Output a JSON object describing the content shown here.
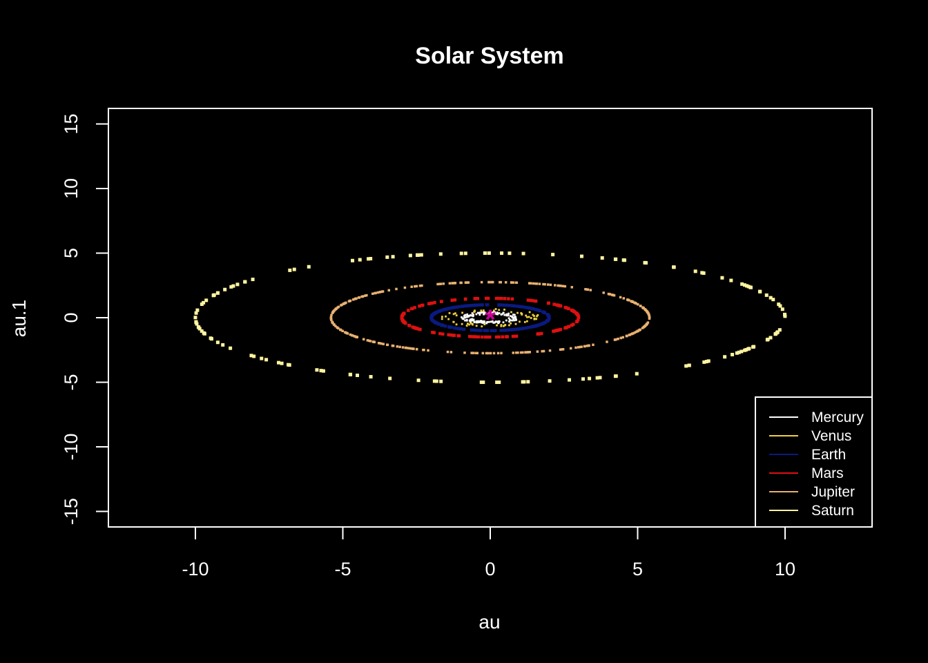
{
  "chart_data": {
    "type": "scatter",
    "title": "Solar System",
    "xlabel": "au",
    "ylabel": "au.1",
    "xlim": [
      -12.95,
      12.95
    ],
    "ylim": [
      -16.2,
      16.2
    ],
    "x_ticks": [
      -10,
      -5,
      0,
      5,
      10
    ],
    "y_ticks": [
      -15,
      -10,
      -5,
      0,
      5,
      10,
      15
    ],
    "grid": false,
    "legend_position": "bottom-right",
    "background_color": "#000000",
    "foreground_color": "#ffffff",
    "sun": {
      "x": 0,
      "y": 0,
      "symbol": "*",
      "color": "#cc0099"
    },
    "series": [
      {
        "name": "Mercury",
        "color": "#ffffff",
        "orbit_rx": 0.9,
        "orbit_ry": 0.4,
        "points": 140
      },
      {
        "name": "Venus",
        "color": "#f0d040",
        "orbit_rx": 1.4,
        "orbit_ry": 0.6,
        "points": 60
      },
      {
        "name": "Earth",
        "color": "#0a1a80",
        "orbit_rx": 2.0,
        "orbit_ry": 1.0,
        "points": 220
      },
      {
        "name": "Mars",
        "color": "#dd1111",
        "orbit_rx": 3.0,
        "orbit_ry": 1.5,
        "points": 160
      },
      {
        "name": "Jupiter",
        "color": "#e8b070",
        "orbit_rx": 5.4,
        "orbit_ry": 2.75,
        "points": 300
      },
      {
        "name": "Saturn",
        "color": "#fff4a0",
        "orbit_rx": 10.0,
        "orbit_ry": 5.0,
        "points": 150
      }
    ]
  }
}
